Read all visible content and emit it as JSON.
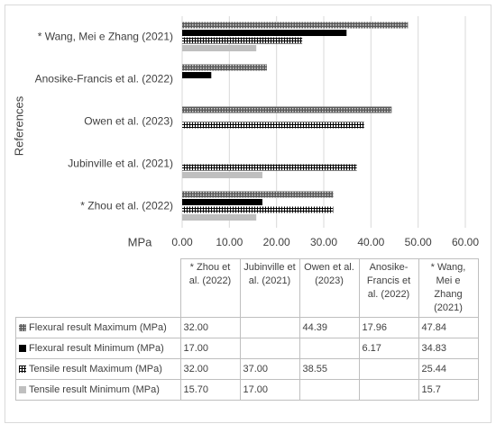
{
  "chart_data": {
    "type": "bar",
    "orientation": "horizontal",
    "ylabel": "References",
    "xlabel": "MPa",
    "categories": [
      "* Zhou et al. (2022)",
      "Jubinville et al. (2021)",
      "Owen et al. (2023)",
      "Anosike-Francis et al. (2022)",
      "* Wang, Mei e Zhang (2021)"
    ],
    "series": [
      {
        "name": "Flexural result Maximum (MPa)",
        "color": "#595959",
        "pattern": "dots",
        "values": [
          32.0,
          null,
          44.39,
          17.96,
          47.84
        ],
        "value_labels": [
          "32.00",
          null,
          "44.39",
          "17.96",
          "47.84"
        ]
      },
      {
        "name": "Flexural result Minimum (MPa)",
        "color": "#000000",
        "pattern": "solid",
        "values": [
          17.0,
          null,
          null,
          6.17,
          34.83
        ],
        "value_labels": [
          "17.00",
          null,
          null,
          "6.17",
          "34.83"
        ]
      },
      {
        "name": "Tensile result Maximum (MPa)",
        "color": "#000000",
        "pattern": "grid",
        "values": [
          32.0,
          37.0,
          38.55,
          null,
          25.44
        ],
        "value_labels": [
          "32.00",
          "37.00",
          "38.55",
          null,
          "25.44"
        ]
      },
      {
        "name": "Tensile result Minimum (MPa)",
        "color": "#bfbfbf",
        "pattern": "solid",
        "values": [
          15.7,
          17.0,
          null,
          null,
          15.7
        ],
        "value_labels": [
          "15.70",
          "17.00",
          null,
          null,
          "15.7"
        ]
      }
    ],
    "xlim": [
      0,
      60
    ],
    "xticks": [
      {
        "value": 0,
        "label": "0.00"
      },
      {
        "value": 10,
        "label": "10.00"
      },
      {
        "value": 20,
        "label": "20.00"
      },
      {
        "value": 30,
        "label": "30.00"
      },
      {
        "value": 40,
        "label": "40.00"
      },
      {
        "value": 50,
        "label": "50.00"
      },
      {
        "value": 60,
        "label": "60.00"
      }
    ],
    "grid": true
  }
}
